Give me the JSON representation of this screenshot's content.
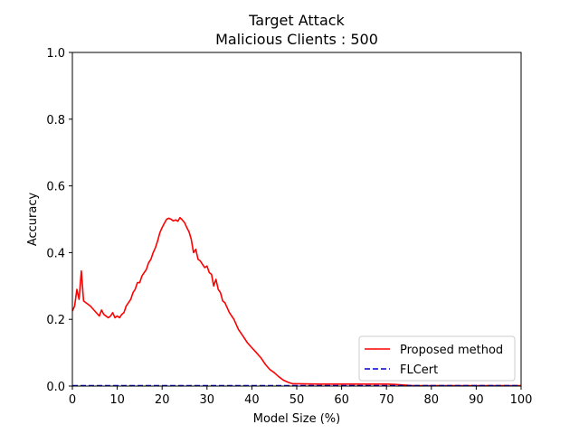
{
  "chart_data": {
    "type": "line",
    "title_lines": [
      "Target Attack",
      "Malicious Clients : 500"
    ],
    "xlabel": "Model Size (%)",
    "ylabel": "Accuracy",
    "xlim": [
      0,
      100
    ],
    "ylim": [
      0,
      1.0
    ],
    "xticks": [
      0,
      10,
      20,
      30,
      40,
      50,
      60,
      70,
      80,
      90,
      100
    ],
    "yticks": [
      0.0,
      0.2,
      0.4,
      0.6,
      0.8,
      1.0
    ],
    "ytick_labels": [
      "0.0",
      "0.2",
      "0.4",
      "0.6",
      "0.8",
      "1.0"
    ],
    "grid": false,
    "legend_position": "lower-right",
    "series": [
      {
        "name": "Proposed method",
        "color": "#ff0000",
        "style": "solid",
        "x": [
          0,
          0.5,
          1,
          1.5,
          2,
          2.5,
          3,
          4,
          5,
          6,
          6.5,
          7,
          8,
          8.5,
          9,
          9.5,
          10,
          10.5,
          11,
          11.5,
          12,
          12.5,
          13,
          13.5,
          14,
          14.5,
          15,
          15.5,
          16,
          16.5,
          17,
          17.5,
          18,
          18.5,
          19,
          19.5,
          20,
          20.5,
          21,
          21.5,
          22,
          22.5,
          23,
          23.5,
          24,
          24.5,
          25,
          25.5,
          26,
          26.5,
          27,
          27.5,
          28,
          28.5,
          29,
          29.5,
          30,
          30.5,
          31,
          31.5,
          32,
          32.5,
          33,
          33.5,
          34,
          35,
          36,
          37,
          38,
          39,
          40,
          41,
          42,
          43,
          44,
          45,
          46,
          47,
          48,
          49,
          50,
          55,
          60,
          65,
          70,
          72,
          74,
          76,
          80,
          90,
          100
        ],
        "y": [
          0.225,
          0.24,
          0.29,
          0.26,
          0.345,
          0.255,
          0.25,
          0.24,
          0.225,
          0.21,
          0.228,
          0.215,
          0.205,
          0.21,
          0.22,
          0.205,
          0.21,
          0.205,
          0.215,
          0.22,
          0.24,
          0.25,
          0.26,
          0.28,
          0.29,
          0.31,
          0.31,
          0.33,
          0.34,
          0.35,
          0.37,
          0.38,
          0.4,
          0.415,
          0.435,
          0.46,
          0.475,
          0.488,
          0.5,
          0.503,
          0.5,
          0.495,
          0.498,
          0.494,
          0.505,
          0.498,
          0.49,
          0.475,
          0.462,
          0.44,
          0.4,
          0.41,
          0.38,
          0.375,
          0.365,
          0.355,
          0.36,
          0.34,
          0.335,
          0.3,
          0.32,
          0.29,
          0.28,
          0.255,
          0.25,
          0.22,
          0.2,
          0.17,
          0.15,
          0.13,
          0.115,
          0.1,
          0.085,
          0.065,
          0.05,
          0.04,
          0.028,
          0.018,
          0.012,
          0.007,
          0.007,
          0.006,
          0.006,
          0.006,
          0.006,
          0.005,
          0.003,
          0.001,
          0.001,
          0.001,
          0.001
        ]
      },
      {
        "name": "FLCert",
        "color": "#0000cc",
        "style": "dashed",
        "x": [
          0,
          100
        ],
        "y": [
          0.001,
          0.001
        ]
      }
    ]
  }
}
